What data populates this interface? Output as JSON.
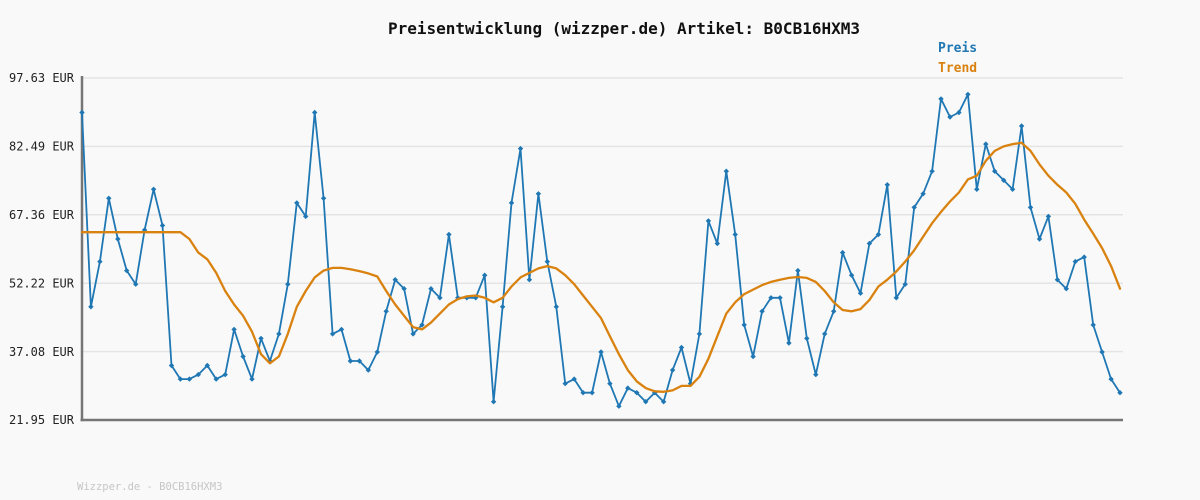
{
  "header": {
    "title": "Preisentwicklung (wizzper.de) Artikel: B0CB16HXM3"
  },
  "legend": {
    "items": [
      {
        "label": "Preis",
        "color": "#1f77b4"
      },
      {
        "label": "Trend",
        "color": "#d9820f"
      }
    ]
  },
  "footer": {
    "text": "Wizzper.de - B0CB16HXM3"
  },
  "chart_data": {
    "type": "line",
    "title": "Preisentwicklung (wizzper.de) Artikel: B0CB16HXM3",
    "currency": "EUR",
    "xlabel": "",
    "ylabel": "",
    "x_tick_labels_visible": false,
    "grid": true,
    "legend_position": "top-right",
    "ylim": [
      21.95,
      97.63
    ],
    "y_ticks": [
      {
        "value": 97.63,
        "label": "97.63 EUR"
      },
      {
        "value": 82.49,
        "label": "82.49 EUR"
      },
      {
        "value": 67.36,
        "label": "67.36 EUR"
      },
      {
        "value": 52.22,
        "label": "52.22 EUR"
      },
      {
        "value": 37.08,
        "label": "37.08 EUR"
      },
      {
        "value": 21.95,
        "label": "21.95 EUR"
      }
    ],
    "series": [
      {
        "name": "Preis",
        "color": "#1f77b4",
        "marker": "diamond",
        "values": [
          90,
          47,
          57,
          71,
          62,
          55,
          52,
          64,
          73,
          65,
          34,
          31,
          31,
          32,
          34,
          31,
          32,
          42,
          36,
          31,
          40,
          35,
          41,
          52,
          70,
          67,
          90,
          71,
          41,
          42,
          35,
          35,
          33,
          37,
          46,
          53,
          51,
          41,
          43,
          51,
          49,
          63,
          49,
          49,
          49,
          54,
          26,
          47,
          70,
          82,
          53,
          72,
          57,
          47,
          30,
          31,
          28,
          28,
          37,
          30,
          25,
          29,
          28,
          26,
          28,
          26,
          33,
          38,
          30,
          41,
          66,
          61,
          77,
          63,
          43,
          36,
          46,
          49,
          49,
          39,
          55,
          40,
          32,
          41,
          46,
          59,
          54,
          50,
          61,
          63,
          74,
          49,
          52,
          69,
          72,
          77,
          93,
          89,
          90,
          94,
          73,
          83,
          77,
          75,
          73,
          87,
          69,
          62,
          67,
          53,
          51,
          57,
          58,
          43,
          37,
          31,
          28
        ]
      },
      {
        "name": "Trend",
        "color": "#d9820f",
        "marker": "none",
        "values": [
          63.5,
          63.5,
          63.5,
          63.5,
          63.5,
          63.5,
          63.5,
          63.5,
          63.5,
          63.5,
          63.5,
          63.5,
          62,
          59,
          57.5,
          54.5,
          50.5,
          47.5,
          45,
          41.5,
          36.5,
          34.5,
          36,
          41,
          47,
          50.5,
          53.5,
          55,
          55.6,
          55.6,
          55.3,
          54.9,
          54.4,
          53.7,
          50.5,
          47.5,
          45,
          42.5,
          42,
          43.5,
          45.5,
          47.5,
          48.7,
          49.3,
          49.5,
          49,
          48,
          49,
          51.5,
          53.5,
          54.5,
          55.5,
          56,
          55.5,
          54,
          52,
          49.5,
          47,
          44.5,
          40.5,
          36.5,
          33,
          30.5,
          29,
          28.3,
          28.2,
          28.5,
          29.5,
          29.5,
          31.5,
          35.5,
          40.5,
          45.5,
          48,
          49.8,
          50.8,
          51.8,
          52.5,
          53,
          53.4,
          53.6,
          53.4,
          52.5,
          50.5,
          48,
          46.3,
          46,
          46.5,
          48.5,
          51.5,
          53,
          54.8,
          57,
          59.5,
          62.5,
          65.5,
          68,
          70.3,
          72.3,
          75.2,
          76,
          79.3,
          81.5,
          82.5,
          83,
          83.3,
          81.5,
          78.5,
          76,
          74,
          72.3,
          69.8,
          66.3,
          63.2,
          60,
          56,
          51
        ]
      }
    ]
  }
}
